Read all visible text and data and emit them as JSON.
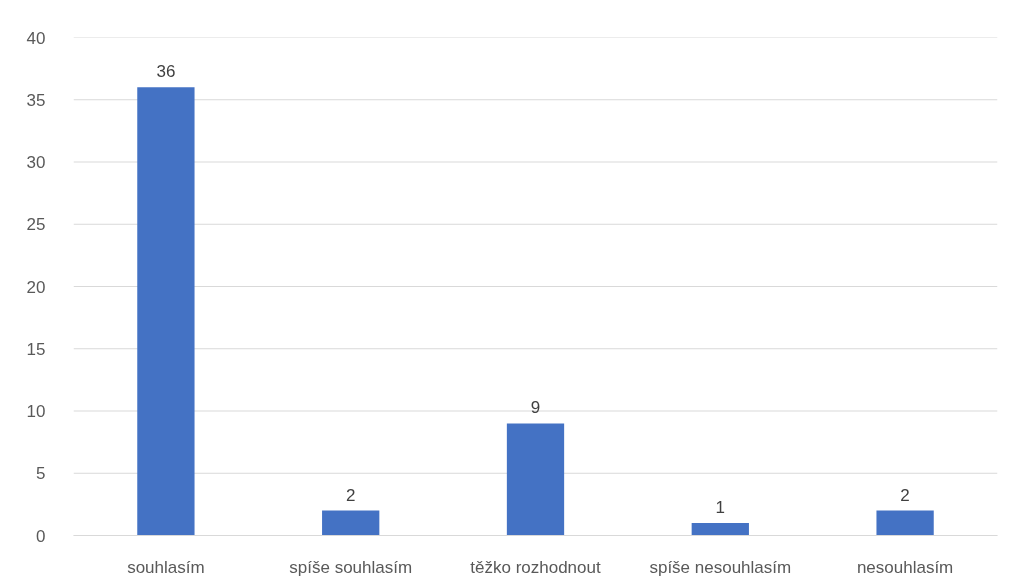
{
  "chart_data": {
    "type": "bar",
    "categories": [
      "souhlasím",
      "spíše souhlasím",
      "těžko rozhodnout",
      "spíše nesouhlasím",
      "nesouhlasím"
    ],
    "values": [
      36,
      2,
      9,
      1,
      2
    ],
    "color": "#4472c4",
    "ylim": [
      0,
      40
    ],
    "yticks": [
      0,
      5,
      10,
      15,
      20,
      25,
      30,
      35,
      40
    ],
    "grid": "y",
    "data_labels": true
  }
}
